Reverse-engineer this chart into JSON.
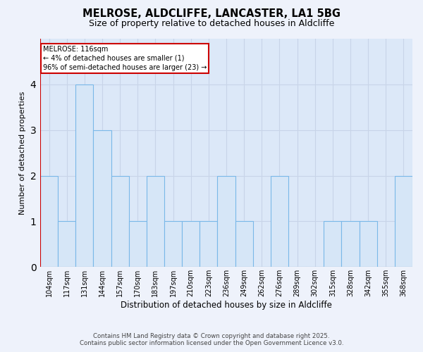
{
  "title1": "MELROSE, ALDCLIFFE, LANCASTER, LA1 5BG",
  "title2": "Size of property relative to detached houses in Aldcliffe",
  "xlabel": "Distribution of detached houses by size in Aldcliffe",
  "ylabel": "Number of detached properties",
  "bin_labels": [
    "104sqm",
    "117sqm",
    "131sqm",
    "144sqm",
    "157sqm",
    "170sqm",
    "183sqm",
    "197sqm",
    "210sqm",
    "223sqm",
    "236sqm",
    "249sqm",
    "262sqm",
    "276sqm",
    "289sqm",
    "302sqm",
    "315sqm",
    "328sqm",
    "342sqm",
    "355sqm",
    "368sqm"
  ],
  "bar_heights": [
    2,
    1,
    4,
    3,
    2,
    1,
    2,
    1,
    1,
    1,
    2,
    1,
    0,
    2,
    0,
    0,
    1,
    1,
    1,
    0,
    2
  ],
  "bar_color": "#d6e6f7",
  "bar_edge_color": "#7ab8e8",
  "melrose_bin_index": 0,
  "melrose_line_color": "#cc0000",
  "annotation_line1": "MELROSE: 116sqm",
  "annotation_line2": "← 4% of detached houses are smaller (1)",
  "annotation_line3": "96% of semi-detached houses are larger (23) →",
  "ylim": [
    0,
    5
  ],
  "yticks": [
    0,
    1,
    2,
    3,
    4
  ],
  "footer1": "Contains HM Land Registry data © Crown copyright and database right 2025.",
  "footer2": "Contains public sector information licensed under the Open Government Licence v3.0.",
  "bg_color": "#eef2fb",
  "grid_color": "#c8d4e8",
  "plot_bg_color": "#dce8f8"
}
